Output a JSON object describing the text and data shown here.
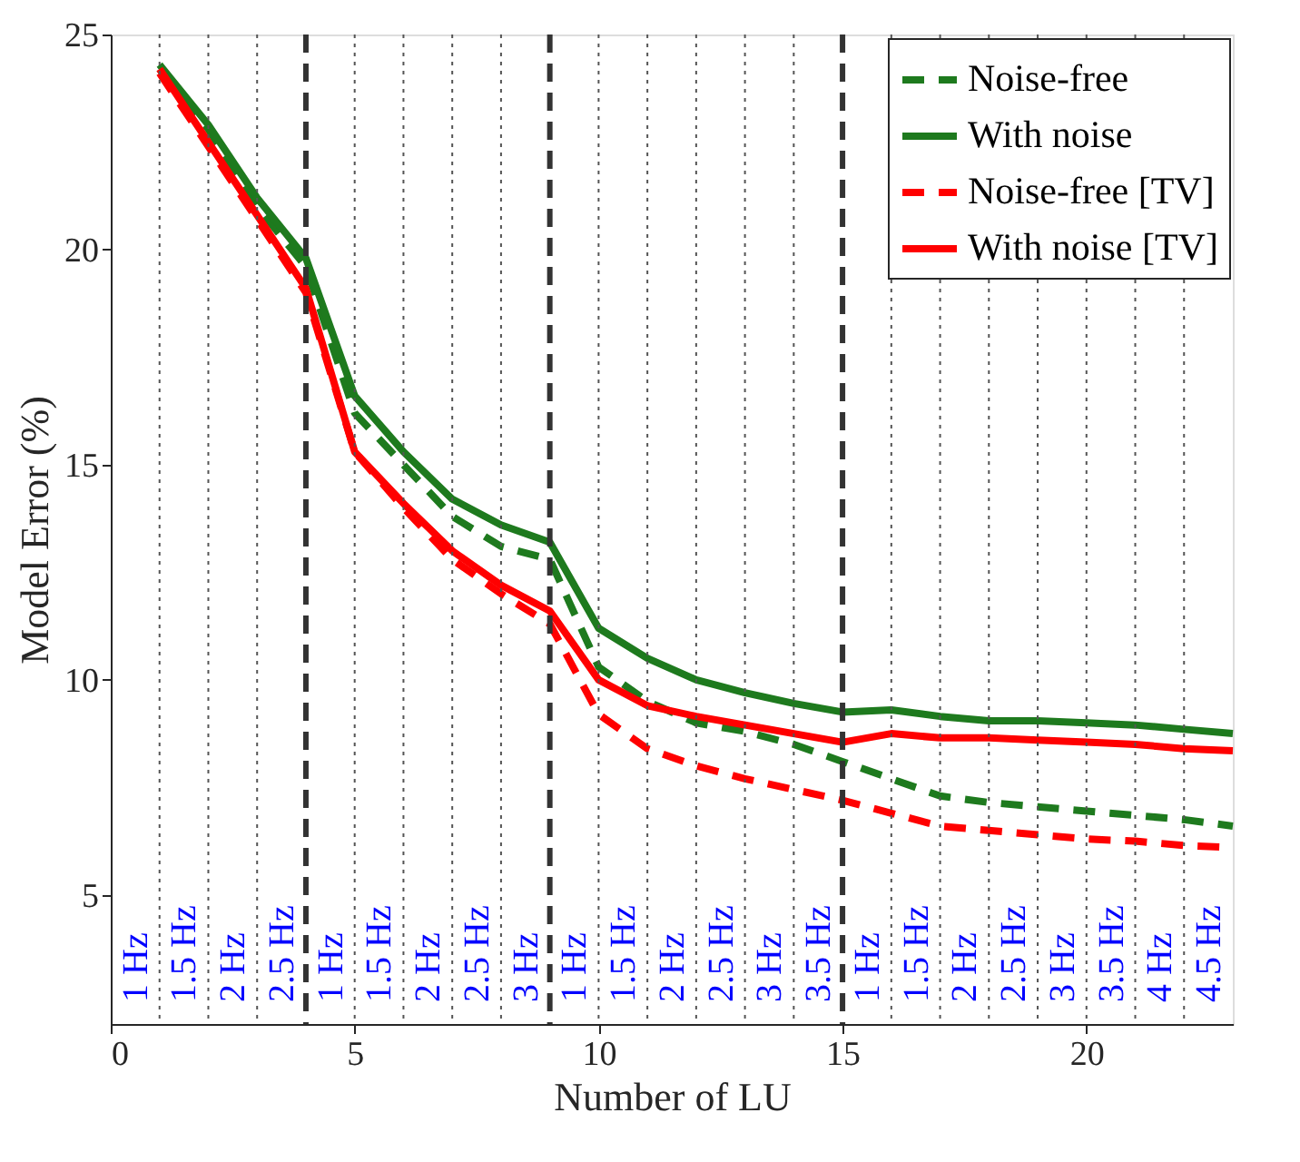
{
  "chart_data": {
    "type": "line",
    "xlabel": "Number of LU",
    "ylabel": "Model Error (%)",
    "x": [
      1,
      2,
      3,
      4,
      5,
      6,
      7,
      8,
      9,
      10,
      11,
      12,
      13,
      14,
      15,
      16,
      17,
      18,
      19,
      20,
      21,
      22,
      23
    ],
    "xlim": [
      0,
      23
    ],
    "xticks": [
      0,
      5,
      10,
      15,
      20
    ],
    "ylim": [
      2,
      25
    ],
    "yticks": [
      5,
      10,
      15,
      20,
      25
    ],
    "grid": false,
    "legend": "top right",
    "series": [
      {
        "name": "Noise-free",
        "color": "#1e7a1e",
        "line_style": "dashed",
        "values": [
          24.2,
          22.8,
          21.0,
          19.6,
          16.2,
          15.0,
          13.8,
          13.1,
          12.8,
          10.3,
          9.5,
          9.0,
          8.8,
          8.5,
          8.1,
          7.7,
          7.3,
          7.15,
          7.05,
          6.95,
          6.85,
          6.75,
          6.6
        ]
      },
      {
        "name": "With noise",
        "color": "#1e7a1e",
        "line_style": "solid",
        "values": [
          24.3,
          22.9,
          21.2,
          19.8,
          16.6,
          15.3,
          14.2,
          13.6,
          13.2,
          11.2,
          10.5,
          10.0,
          9.7,
          9.45,
          9.25,
          9.3,
          9.15,
          9.05,
          9.05,
          9.0,
          8.95,
          8.85,
          8.75
        ]
      },
      {
        "name": "Noise-free [TV]",
        "color": "#ff0000",
        "line_style": "dashed",
        "values": [
          24.1,
          22.4,
          20.7,
          19.0,
          15.3,
          14.0,
          12.8,
          12.0,
          11.3,
          9.2,
          8.4,
          8.0,
          7.7,
          7.45,
          7.2,
          6.9,
          6.6,
          6.5,
          6.4,
          6.3,
          6.25,
          6.15,
          6.1
        ]
      },
      {
        "name": "With noise [TV]",
        "color": "#ff0000",
        "line_style": "solid",
        "values": [
          24.2,
          22.5,
          20.8,
          19.1,
          15.3,
          14.1,
          13.0,
          12.2,
          11.6,
          10.0,
          9.4,
          9.15,
          8.95,
          8.75,
          8.55,
          8.75,
          8.65,
          8.65,
          8.6,
          8.55,
          8.5,
          8.4,
          8.35
        ]
      }
    ],
    "ref_lines": [
      {
        "axis": "x",
        "value": 1,
        "color": "#555555",
        "line_style": "dotted"
      },
      {
        "axis": "x",
        "value": 2,
        "color": "#555555",
        "line_style": "dotted"
      },
      {
        "axis": "x",
        "value": 3,
        "color": "#555555",
        "line_style": "dotted"
      },
      {
        "axis": "x",
        "value": 4,
        "color": "#333333",
        "line_style": "dashed"
      },
      {
        "axis": "x",
        "value": 5,
        "color": "#555555",
        "line_style": "dotted"
      },
      {
        "axis": "x",
        "value": 6,
        "color": "#555555",
        "line_style": "dotted"
      },
      {
        "axis": "x",
        "value": 7,
        "color": "#555555",
        "line_style": "dotted"
      },
      {
        "axis": "x",
        "value": 8,
        "color": "#555555",
        "line_style": "dotted"
      },
      {
        "axis": "x",
        "value": 9,
        "color": "#333333",
        "line_style": "dashed"
      },
      {
        "axis": "x",
        "value": 10,
        "color": "#555555",
        "line_style": "dotted"
      },
      {
        "axis": "x",
        "value": 11,
        "color": "#555555",
        "line_style": "dotted"
      },
      {
        "axis": "x",
        "value": 12,
        "color": "#555555",
        "line_style": "dotted"
      },
      {
        "axis": "x",
        "value": 13,
        "color": "#555555",
        "line_style": "dotted"
      },
      {
        "axis": "x",
        "value": 14,
        "color": "#555555",
        "line_style": "dotted"
      },
      {
        "axis": "x",
        "value": 15,
        "color": "#333333",
        "line_style": "dashed"
      },
      {
        "axis": "x",
        "value": 16,
        "color": "#555555",
        "line_style": "dotted"
      },
      {
        "axis": "x",
        "value": 17,
        "color": "#555555",
        "line_style": "dotted"
      },
      {
        "axis": "x",
        "value": 18,
        "color": "#555555",
        "line_style": "dotted"
      },
      {
        "axis": "x",
        "value": 19,
        "color": "#555555",
        "line_style": "dotted"
      },
      {
        "axis": "x",
        "value": 20,
        "color": "#555555",
        "line_style": "dotted"
      },
      {
        "axis": "x",
        "value": 21,
        "color": "#555555",
        "line_style": "dotted"
      },
      {
        "axis": "x",
        "value": 22,
        "color": "#555555",
        "line_style": "dotted"
      }
    ],
    "annotations": [
      "1 Hz",
      "1.5 Hz",
      "2 Hz",
      "2.5 Hz",
      "1 Hz",
      "1.5 Hz",
      "2 Hz",
      "2.5 Hz",
      "3 Hz",
      "1 Hz",
      "1.5 Hz",
      "2 Hz",
      "2.5 Hz",
      "3 Hz",
      "3.5 Hz",
      "1 Hz",
      "1.5 Hz",
      "2 Hz",
      "2.5 Hz",
      "3 Hz",
      "3.5 Hz",
      "4 Hz",
      "4.5 Hz"
    ]
  }
}
